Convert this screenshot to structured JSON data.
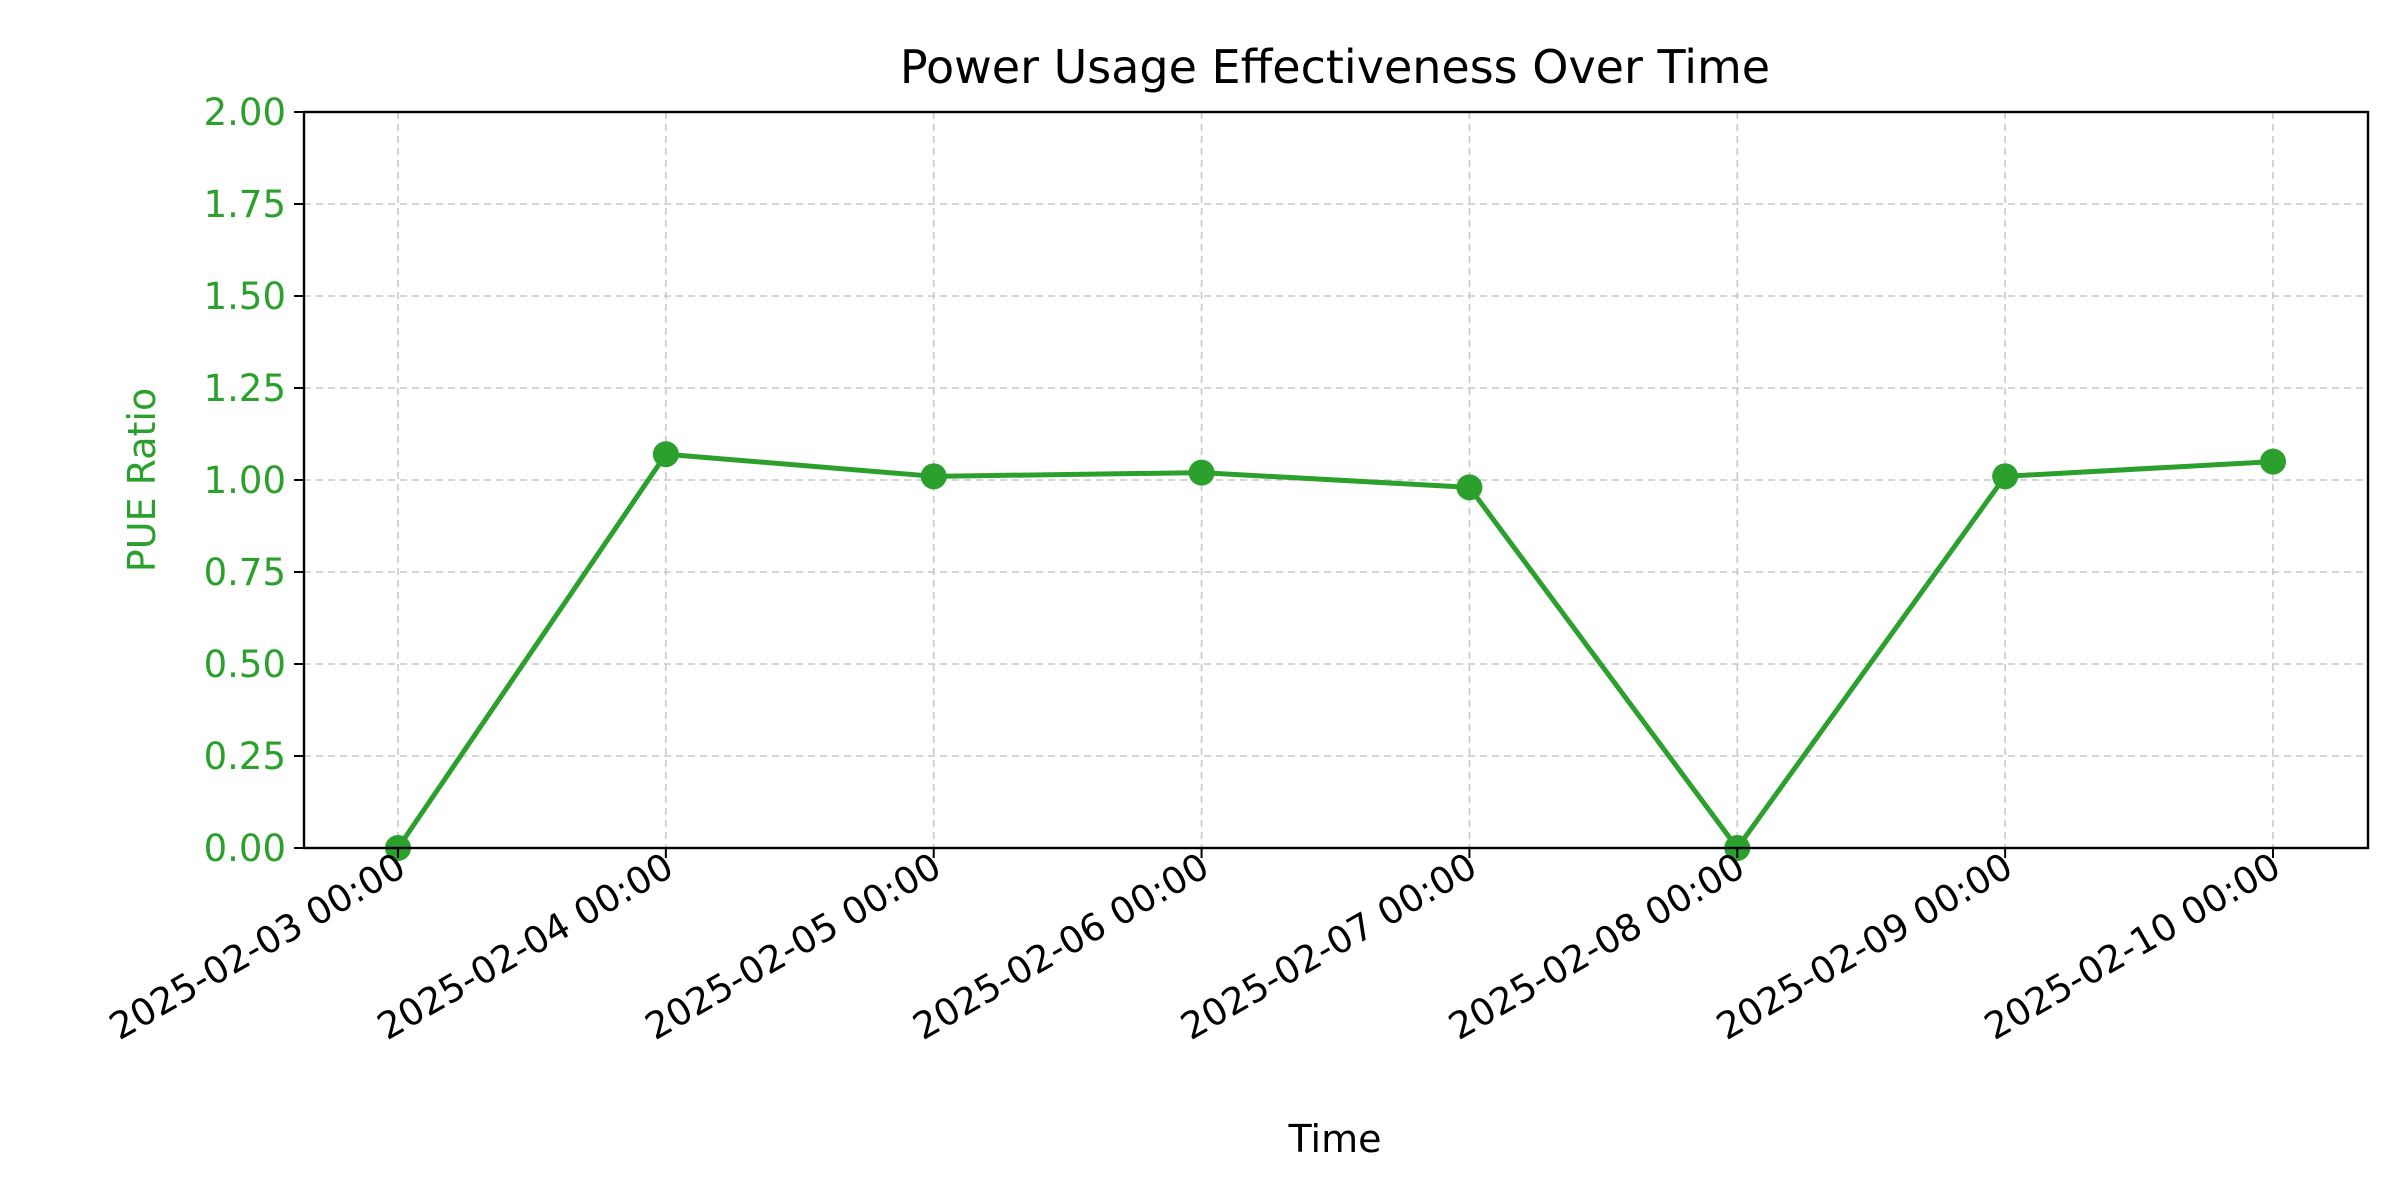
{
  "chart_data": {
    "type": "line",
    "title": "Power Usage Effectiveness Over Time",
    "xlabel": "Time",
    "ylabel": "PUE Ratio",
    "x": [
      "2025-02-03 00:00",
      "2025-02-04 00:00",
      "2025-02-05 00:00",
      "2025-02-06 00:00",
      "2025-02-07 00:00",
      "2025-02-08 00:00",
      "2025-02-09 00:00",
      "2025-02-10 00:00"
    ],
    "series": [
      {
        "values": [
          0.0,
          1.07,
          1.01,
          1.02,
          0.98,
          0.0,
          1.01,
          1.05
        ]
      }
    ],
    "ylim": [
      0,
      2
    ],
    "yticks": [
      "0.00",
      "0.25",
      "0.50",
      "0.75",
      "1.00",
      "1.25",
      "1.50",
      "1.75",
      "2.00"
    ],
    "grid": true,
    "colors": {
      "series": "#2ca02c",
      "ylabel": "#2ca02c",
      "ytick_labels": "#2ca02c"
    }
  }
}
